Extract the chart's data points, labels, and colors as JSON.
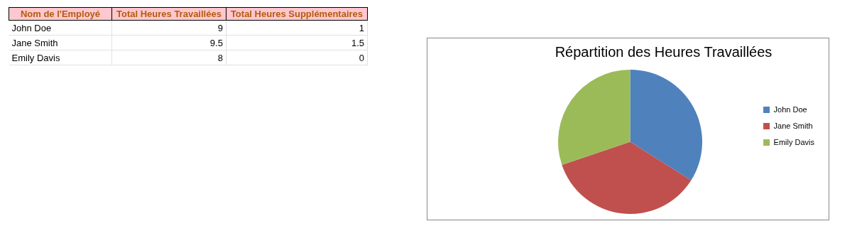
{
  "chart_data": [
    {
      "type": "other",
      "xlabel": "Nom de l'Employé",
      "categories": [
        "John Doe",
        "Jane Smith",
        "Emily Davis"
      ],
      "series": [
        {
          "name": "Total Heures Travaillées",
          "values": [
            9,
            9.5,
            8
          ]
        },
        {
          "name": "Total Heures Supplémentaires",
          "values": [
            1,
            1.5,
            0
          ]
        }
      ],
      "data_labels": true
    },
    {
      "type": "pie",
      "title": "Répartition des Heures Travaillées",
      "categories": [
        "John Doe",
        "Jane Smith",
        "Emily Davis"
      ],
      "values": [
        33.96,
        35.85,
        30.19
      ],
      "colors": [
        "#4f81bd",
        "#c0504d",
        "#9bbb59"
      ],
      "legend": "right"
    }
  ]
}
